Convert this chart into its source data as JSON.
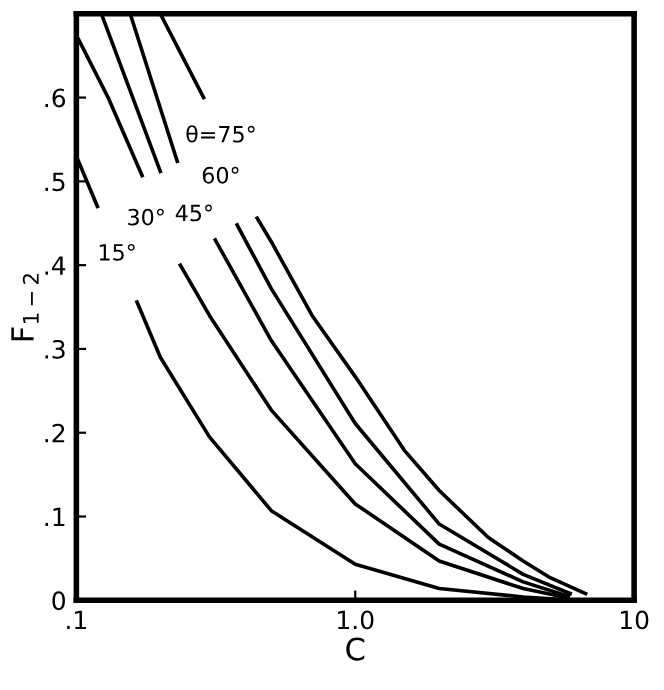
{
  "chart_data": {
    "type": "line",
    "xlabel": "C",
    "ylabel": "F$_{1−2}$",
    "log": "x",
    "xlim": [
      0.1,
      10
    ],
    "xticks": [
      {
        "value": 0.1,
        "label": ".1"
      },
      {
        "value": 1,
        "label": "1.0"
      },
      10
    ],
    "ylim": [
      0,
      0.7
    ],
    "yticks": [
      0,
      {
        "value": 0.1,
        "label": ".1"
      },
      {
        "value": 0.2,
        "label": ".2"
      },
      {
        "value": 0.3,
        "label": ".3"
      },
      {
        "value": 0.4,
        "label": ".4"
      },
      {
        "value": 0.5,
        "label": ".5"
      },
      {
        "value": 0.6,
        "label": ".6"
      }
    ],
    "grid": false,
    "legend": false,
    "marker": "none",
    "line_style": "solid",
    "series": [
      {
        "color": "#000000",
        "x": [
          0.1,
          0.119,
          0.14,
          0.165,
          0.2,
          0.3,
          0.5,
          1.0,
          2.0,
          4.0,
          6.0
        ],
        "values": [
          0.53,
          0.47,
          null,
          0.356,
          0.29,
          0.195,
          0.107,
          0.043,
          0.014,
          0.004,
          0.0
        ]
      },
      {
        "color": "#000000",
        "x": [
          0.102,
          0.13,
          0.172,
          0.2,
          0.236,
          0.3,
          0.5,
          1.0,
          2.0,
          4.0,
          5.8
        ],
        "values": [
          0.669,
          0.6,
          0.507,
          null,
          0.4,
          0.34,
          0.227,
          0.115,
          0.047,
          0.014,
          0.003
        ]
      },
      {
        "color": "#000000",
        "x": [
          0.123,
          0.2,
          0.25,
          0.315,
          0.5,
          1.0,
          2.0,
          4.0,
          5.8
        ],
        "values": [
          0.7,
          0.512,
          null,
          0.43,
          0.31,
          0.163,
          0.067,
          0.022,
          0.005
        ]
      },
      {
        "color": "#000000",
        "x": [
          0.156,
          0.23,
          0.295,
          0.377,
          0.5,
          1.0,
          2.0,
          4.0,
          5.9
        ],
        "values": [
          0.7,
          0.524,
          null,
          0.448,
          0.372,
          0.211,
          0.091,
          0.031,
          0.008
        ]
      },
      {
        "color": "#000000",
        "x": [
          0.2,
          0.286,
          0.357,
          0.445,
          0.5,
          0.7,
          1.0,
          1.5,
          2.0,
          3.0,
          4.0,
          5.0,
          6.7
        ],
        "values": [
          0.7,
          0.6,
          null,
          0.456,
          0.428,
          0.34,
          0.267,
          0.179,
          0.131,
          0.075,
          0.047,
          0.027,
          0.008
        ]
      }
    ],
    "annotations": [
      {
        "text": "15°",
        "x": 0.14,
        "y": 0.413
      },
      {
        "text": "30°",
        "x": 0.178,
        "y": 0.455
      },
      {
        "text": "45°",
        "x": 0.265,
        "y": 0.46
      },
      {
        "text": "60°",
        "x": 0.33,
        "y": 0.505
      },
      {
        "text": "θ=75°",
        "x": 0.33,
        "y": 0.554
      }
    ]
  }
}
